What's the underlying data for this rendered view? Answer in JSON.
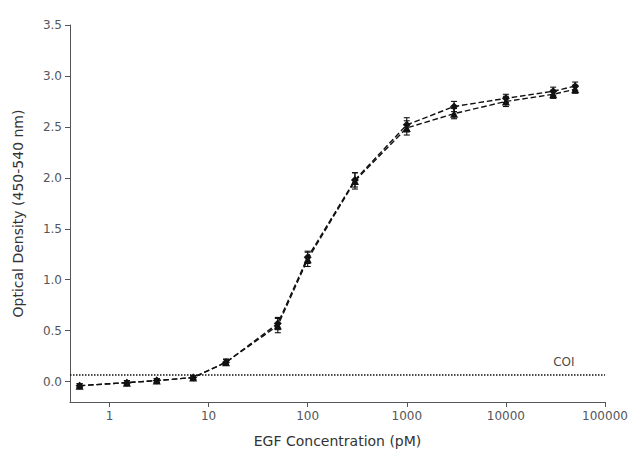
{
  "chart_data": {
    "type": "line",
    "xlabel": "EGF Concentration (pM)",
    "ylabel": "Optical Density (450-540 nm)",
    "log": "x",
    "grid": false,
    "xlim": [
      0.4,
      100000
    ],
    "ylim": [
      -0.2,
      3.5
    ],
    "xticks": [
      1,
      10,
      100,
      1000,
      10000,
      100000
    ],
    "yticks": [
      {
        "value": 0.0,
        "label": "0.0"
      },
      0.5,
      {
        "value": 1.0,
        "label": "1.0"
      },
      1.5,
      {
        "value": 2.0,
        "label": "2.0"
      },
      2.5,
      {
        "value": 3.0,
        "label": "3.0"
      },
      3.5
    ],
    "x": [
      0.5,
      1.5,
      3.0,
      7.0,
      15,
      50,
      100,
      300,
      1000,
      3000,
      10000,
      30000,
      50000
    ],
    "series": [
      {
        "color": "#111111",
        "marker": "diamond",
        "line_style": "dashed",
        "values": [
          -0.04,
          -0.01,
          0.01,
          0.04,
          0.19,
          0.57,
          1.22,
          1.98,
          2.52,
          2.7,
          2.78,
          2.85,
          2.9
        ],
        "errors": [
          0.02,
          0.02,
          0.02,
          0.02,
          0.03,
          0.06,
          0.06,
          0.07,
          0.07,
          0.05,
          0.04,
          0.04,
          0.04
        ]
      },
      {
        "color": "#111111",
        "marker": "triangle",
        "line_style": "dashed",
        "values": [
          -0.04,
          -0.01,
          0.01,
          0.04,
          0.19,
          0.55,
          1.2,
          1.97,
          2.49,
          2.63,
          2.75,
          2.82,
          2.87
        ],
        "errors": [
          0.02,
          0.02,
          0.02,
          0.02,
          0.03,
          0.07,
          0.07,
          0.08,
          0.07,
          0.05,
          0.05,
          0.04,
          0.04
        ]
      }
    ],
    "reference_lines": [
      {
        "y": 0.07,
        "label": "COI",
        "label_x": 30000,
        "color": "#111111",
        "line_style": "dotted"
      }
    ]
  }
}
